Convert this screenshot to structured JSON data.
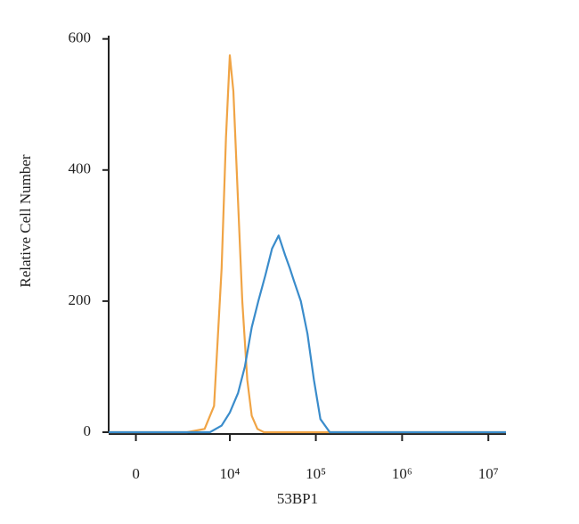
{
  "chart_data": {
    "type": "line",
    "xlabel": "53BP1",
    "ylabel": "Relative Cell Number",
    "xscale": "biexponential",
    "xlim": [
      -1300,
      16000000
    ],
    "xticks": [
      0,
      {
        "value": 10000,
        "label": "10⁴"
      },
      {
        "value": 100000,
        "label": "10⁵"
      },
      {
        "value": 1000000,
        "label": "10⁶"
      },
      {
        "value": 10000000,
        "label": "10⁷"
      }
    ],
    "ylim": [
      0,
      605
    ],
    "yticks": [
      0,
      200,
      400,
      600
    ],
    "series": [
      {
        "color": "#f0a445",
        "x": [
          -1300,
          3000,
          5000,
          6500,
          8000,
          9000,
          10000,
          11000,
          12500,
          14000,
          16000,
          18000,
          21000,
          25000,
          16000000
        ],
        "values": [
          0,
          0,
          5,
          40,
          250,
          450,
          575,
          520,
          350,
          200,
          80,
          25,
          5,
          0,
          0
        ]
      },
      {
        "color": "#3a8ccb",
        "x": [
          -1300,
          5800,
          8000,
          10000,
          12500,
          15000,
          18000,
          21500,
          26000,
          31000,
          37000,
          44000,
          50000,
          56000,
          67000,
          80000,
          95000,
          113000,
          145000,
          16000000
        ],
        "values": [
          0,
          0,
          10,
          30,
          60,
          100,
          160,
          200,
          240,
          280,
          300,
          270,
          250,
          230,
          200,
          150,
          80,
          20,
          0,
          0
        ]
      }
    ]
  }
}
